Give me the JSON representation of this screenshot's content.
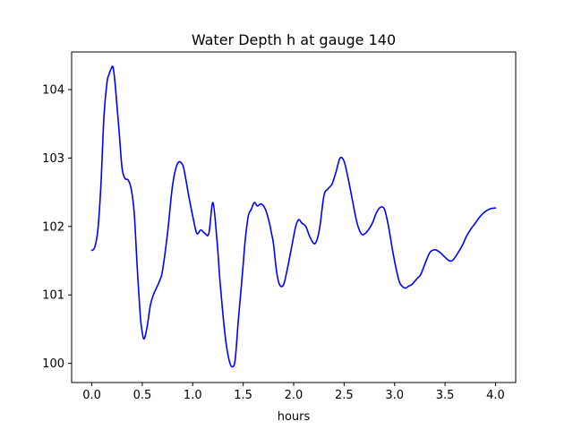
{
  "chart_data": {
    "type": "line",
    "title": "Water Depth h at gauge 140",
    "xlabel": "hours",
    "ylabel": "",
    "xlim": [
      -0.2,
      4.2
    ],
    "ylim": [
      99.72,
      104.55
    ],
    "xticks": [
      0.0,
      0.5,
      1.0,
      1.5,
      2.0,
      2.5,
      3.0,
      3.5,
      4.0
    ],
    "xtick_labels": [
      "0.0",
      "0.5",
      "1.0",
      "1.5",
      "2.0",
      "2.5",
      "3.0",
      "3.5",
      "4.0"
    ],
    "yticks": [
      100,
      101,
      102,
      103,
      104
    ],
    "ytick_labels": [
      "100",
      "101",
      "102",
      "103",
      "104"
    ],
    "grid": false,
    "series": [
      {
        "color": "#0000ff",
        "x": [
          0.0,
          0.03,
          0.06,
          0.09,
          0.12,
          0.15,
          0.17,
          0.19,
          0.21,
          0.23,
          0.25,
          0.27,
          0.3,
          0.33,
          0.36,
          0.39,
          0.42,
          0.45,
          0.48,
          0.5,
          0.52,
          0.55,
          0.58,
          0.61,
          0.64,
          0.67,
          0.7,
          0.75,
          0.8,
          0.85,
          0.9,
          0.93,
          0.96,
          1.0,
          1.04,
          1.08,
          1.12,
          1.16,
          1.2,
          1.24,
          1.27,
          1.3,
          1.33,
          1.36,
          1.39,
          1.42,
          1.45,
          1.48,
          1.5,
          1.52,
          1.55,
          1.58,
          1.61,
          1.64,
          1.68,
          1.72,
          1.76,
          1.78,
          1.8,
          1.83,
          1.86,
          1.9,
          1.94,
          1.98,
          2.02,
          2.05,
          2.08,
          2.12,
          2.16,
          2.2,
          2.23,
          2.26,
          2.3,
          2.34,
          2.38,
          2.42,
          2.46,
          2.5,
          2.54,
          2.58,
          2.62,
          2.65,
          2.68,
          2.71,
          2.74,
          2.78,
          2.82,
          2.86,
          2.9,
          2.94,
          2.98,
          3.02,
          3.05,
          3.08,
          3.11,
          3.14,
          3.17,
          3.2,
          3.23,
          3.26,
          3.3,
          3.35,
          3.4,
          3.45,
          3.5,
          3.54,
          3.57,
          3.6,
          3.63,
          3.67,
          3.71,
          3.75,
          3.8,
          3.85,
          3.9,
          3.95,
          4.0
        ],
        "y": [
          101.65,
          101.7,
          101.95,
          102.6,
          103.6,
          104.1,
          104.22,
          104.3,
          104.33,
          104.1,
          103.75,
          103.4,
          102.85,
          102.7,
          102.68,
          102.55,
          102.2,
          101.4,
          100.7,
          100.45,
          100.36,
          100.55,
          100.85,
          101.0,
          101.1,
          101.2,
          101.35,
          101.9,
          102.6,
          102.92,
          102.9,
          102.7,
          102.45,
          102.15,
          101.9,
          101.95,
          101.9,
          101.9,
          102.35,
          101.8,
          101.2,
          100.7,
          100.3,
          100.05,
          99.95,
          100.05,
          100.6,
          101.1,
          101.45,
          101.8,
          102.15,
          102.25,
          102.35,
          102.3,
          102.33,
          102.25,
          102.05,
          101.9,
          101.75,
          101.35,
          101.15,
          101.15,
          101.4,
          101.7,
          102.0,
          102.1,
          102.05,
          102.0,
          101.85,
          101.75,
          101.8,
          102.0,
          102.45,
          102.55,
          102.62,
          102.8,
          103.0,
          102.95,
          102.7,
          102.4,
          102.1,
          101.95,
          101.88,
          101.9,
          101.95,
          102.05,
          102.2,
          102.28,
          102.25,
          102.0,
          101.65,
          101.35,
          101.18,
          101.12,
          101.1,
          101.13,
          101.15,
          101.2,
          101.25,
          101.3,
          101.45,
          101.62,
          101.66,
          101.62,
          101.55,
          101.5,
          101.5,
          101.55,
          101.62,
          101.72,
          101.85,
          101.95,
          102.05,
          102.15,
          102.22,
          102.26,
          102.27
        ]
      }
    ]
  }
}
